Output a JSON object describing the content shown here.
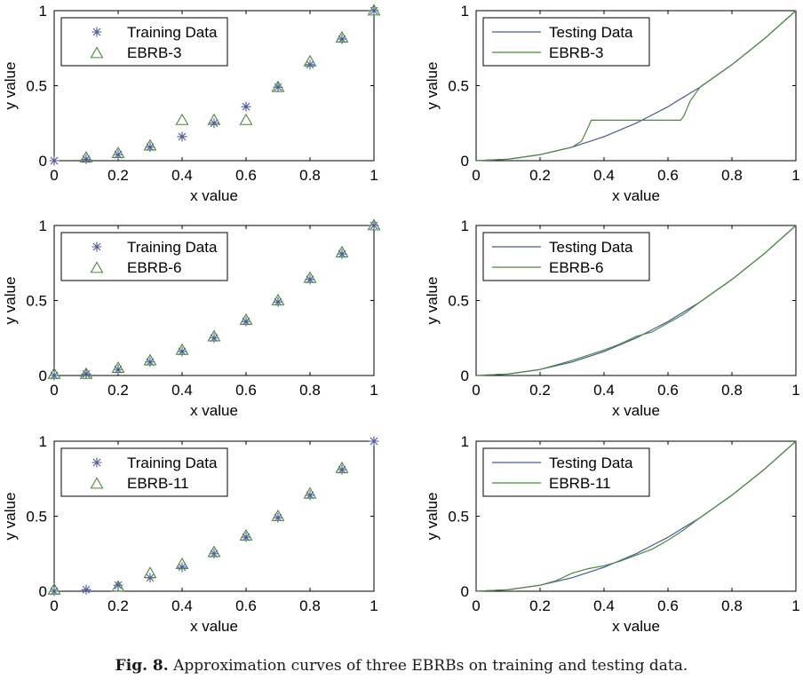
{
  "caption": {
    "label": "Fig. 8.",
    "text": "Approximation curves of three EBRBs on training and testing data."
  },
  "colors": {
    "training": "#4b58a0",
    "ebrb": "#4a8a3a",
    "axis": "#000000"
  },
  "chart_data": [
    {
      "type": "scatter",
      "xlabel": "x value",
      "ylabel": "y value",
      "xlim": [
        0,
        1
      ],
      "ylim": [
        0,
        1
      ],
      "xticks": [
        "0",
        "0.2",
        "0.4",
        "0.6",
        "0.8",
        "1"
      ],
      "yticks": [
        "0",
        "0.5",
        "1"
      ],
      "legend_position": "top-left",
      "series": [
        {
          "name": "Training Data",
          "marker": "star",
          "x": [
            0,
            0.1,
            0.2,
            0.3,
            0.4,
            0.5,
            0.6,
            0.7,
            0.8,
            0.9,
            1
          ],
          "y": [
            0,
            0.01,
            0.04,
            0.09,
            0.16,
            0.25,
            0.36,
            0.49,
            0.64,
            0.81,
            1
          ]
        },
        {
          "name": "EBRB-3",
          "marker": "triangle",
          "x": [
            0.1,
            0.2,
            0.3,
            0.4,
            0.5,
            0.6,
            0.7,
            0.8,
            0.9,
            1
          ],
          "y": [
            0.02,
            0.05,
            0.1,
            0.27,
            0.27,
            0.27,
            0.49,
            0.66,
            0.82,
            1
          ]
        }
      ]
    },
    {
      "type": "line",
      "xlabel": "x value",
      "ylabel": "y value",
      "xlim": [
        0,
        1
      ],
      "ylim": [
        0,
        1
      ],
      "xticks": [
        "0",
        "0.2",
        "0.4",
        "0.6",
        "0.8",
        "1"
      ],
      "yticks": [
        "0",
        "0.5",
        "1"
      ],
      "legend_position": "top-left",
      "series": [
        {
          "name": "Testing Data",
          "x": [
            0,
            0.1,
            0.2,
            0.3,
            0.4,
            0.5,
            0.6,
            0.7,
            0.8,
            0.9,
            1
          ],
          "y": [
            0,
            0.01,
            0.04,
            0.09,
            0.16,
            0.25,
            0.36,
            0.49,
            0.64,
            0.81,
            1
          ]
        },
        {
          "name": "EBRB-3",
          "x": [
            0,
            0.1,
            0.2,
            0.3,
            0.33,
            0.35,
            0.36,
            0.5,
            0.64,
            0.65,
            0.67,
            0.7,
            0.8,
            0.9,
            1
          ],
          "y": [
            0,
            0.01,
            0.04,
            0.09,
            0.13,
            0.22,
            0.27,
            0.27,
            0.27,
            0.3,
            0.4,
            0.49,
            0.64,
            0.81,
            1
          ]
        }
      ]
    },
    {
      "type": "scatter",
      "xlabel": "x value",
      "ylabel": "y value",
      "xlim": [
        0,
        1
      ],
      "ylim": [
        0,
        1
      ],
      "xticks": [
        "0",
        "0.2",
        "0.4",
        "0.6",
        "0.8",
        "1"
      ],
      "yticks": [
        "0",
        "0.5",
        "1"
      ],
      "legend_position": "top-left",
      "series": [
        {
          "name": "Training Data",
          "marker": "star",
          "x": [
            0,
            0.1,
            0.2,
            0.3,
            0.4,
            0.5,
            0.6,
            0.7,
            0.8,
            0.9,
            1
          ],
          "y": [
            0,
            0.01,
            0.04,
            0.09,
            0.16,
            0.25,
            0.36,
            0.49,
            0.64,
            0.81,
            1
          ]
        },
        {
          "name": "EBRB-6",
          "marker": "triangle",
          "x": [
            0,
            0.1,
            0.2,
            0.3,
            0.4,
            0.5,
            0.6,
            0.7,
            0.8,
            0.9,
            1
          ],
          "y": [
            0.01,
            0.01,
            0.05,
            0.1,
            0.17,
            0.26,
            0.37,
            0.5,
            0.65,
            0.82,
            1
          ]
        }
      ]
    },
    {
      "type": "line",
      "xlabel": "x value",
      "ylabel": "y value",
      "xlim": [
        0,
        1
      ],
      "ylim": [
        0,
        1
      ],
      "xticks": [
        "0",
        "0.2",
        "0.4",
        "0.6",
        "0.8",
        "1"
      ],
      "yticks": [
        "0",
        "0.5",
        "1"
      ],
      "legend_position": "top-left",
      "series": [
        {
          "name": "Testing Data",
          "x": [
            0,
            0.1,
            0.2,
            0.3,
            0.4,
            0.5,
            0.6,
            0.7,
            0.8,
            0.9,
            1
          ],
          "y": [
            0,
            0.01,
            0.04,
            0.09,
            0.16,
            0.25,
            0.36,
            0.49,
            0.64,
            0.81,
            1
          ]
        },
        {
          "name": "EBRB-6",
          "x": [
            0,
            0.1,
            0.2,
            0.3,
            0.4,
            0.45,
            0.5,
            0.55,
            0.6,
            0.65,
            0.7,
            0.8,
            0.9,
            1
          ],
          "y": [
            0,
            0.01,
            0.04,
            0.1,
            0.17,
            0.21,
            0.26,
            0.29,
            0.35,
            0.41,
            0.49,
            0.64,
            0.81,
            1
          ]
        }
      ]
    },
    {
      "type": "scatter",
      "xlabel": "x value",
      "ylabel": "y value",
      "xlim": [
        0,
        1
      ],
      "ylim": [
        0,
        1
      ],
      "xticks": [
        "0",
        "0.2",
        "0.4",
        "0.6",
        "0.8",
        "1"
      ],
      "yticks": [
        "0",
        "0.5",
        "1"
      ],
      "legend_position": "top-left",
      "series": [
        {
          "name": "Training Data",
          "marker": "star",
          "x": [
            0,
            0.1,
            0.2,
            0.3,
            0.4,
            0.5,
            0.6,
            0.7,
            0.8,
            0.9,
            1
          ],
          "y": [
            0,
            0.01,
            0.04,
            0.09,
            0.16,
            0.25,
            0.36,
            0.49,
            0.64,
            0.81,
            1
          ]
        },
        {
          "name": "EBRB-11",
          "marker": "triangle",
          "x": [
            0,
            0.2,
            0.3,
            0.4,
            0.5,
            0.6,
            0.7,
            0.8,
            0.9
          ],
          "y": [
            0.01,
            0.03,
            0.12,
            0.18,
            0.26,
            0.37,
            0.5,
            0.65,
            0.82
          ]
        }
      ]
    },
    {
      "type": "line",
      "xlabel": "x value",
      "ylabel": "y value",
      "xlim": [
        0,
        1
      ],
      "ylim": [
        0,
        1
      ],
      "xticks": [
        "0",
        "0.2",
        "0.4",
        "0.6",
        "0.8",
        "1"
      ],
      "yticks": [
        "0",
        "0.5",
        "1"
      ],
      "legend_position": "top-left",
      "series": [
        {
          "name": "Testing Data",
          "x": [
            0,
            0.1,
            0.2,
            0.3,
            0.4,
            0.5,
            0.6,
            0.7,
            0.8,
            0.9,
            1
          ],
          "y": [
            0,
            0.01,
            0.04,
            0.09,
            0.16,
            0.25,
            0.36,
            0.49,
            0.64,
            0.81,
            1
          ]
        },
        {
          "name": "EBRB-11",
          "x": [
            0,
            0.1,
            0.2,
            0.25,
            0.3,
            0.35,
            0.4,
            0.45,
            0.5,
            0.55,
            0.6,
            0.65,
            0.7,
            0.8,
            0.9,
            1
          ],
          "y": [
            0,
            0.01,
            0.04,
            0.07,
            0.12,
            0.15,
            0.17,
            0.2,
            0.24,
            0.28,
            0.34,
            0.41,
            0.49,
            0.64,
            0.81,
            1
          ]
        }
      ]
    }
  ]
}
